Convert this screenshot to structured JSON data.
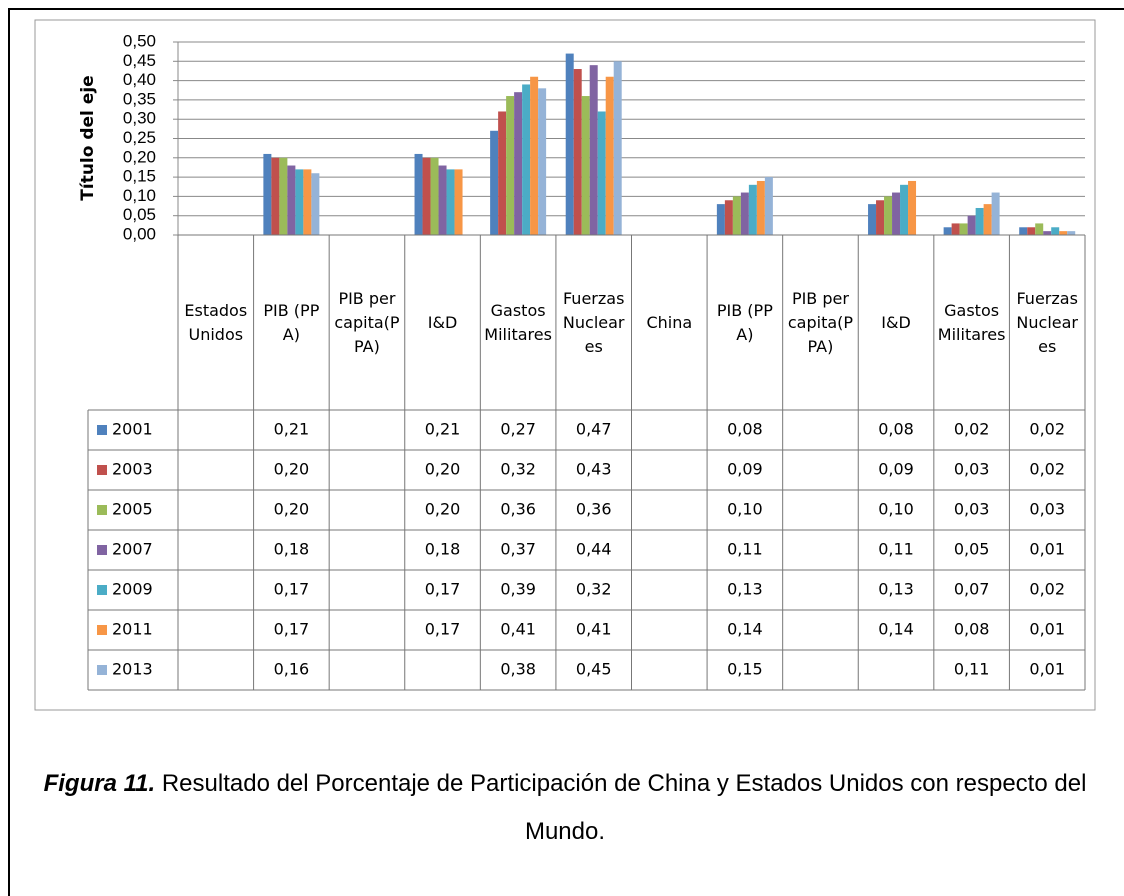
{
  "chart_data": {
    "type": "bar",
    "y_axis_label": "Título del eje",
    "categories": [
      "Estados Unidos",
      "PIB (PPA)",
      "PIB per capita(PPA)",
      "I&D",
      "Gastos Militares",
      "Fuerzas Nucleares",
      "China",
      "PIB (PPA)",
      "PIB per capita(PPA)",
      "I&D",
      "Gastos Militares",
      "Fuerzas Nucleares"
    ],
    "series": [
      {
        "name": "2001",
        "color": "#4f81bd",
        "values": [
          null,
          0.21,
          null,
          0.21,
          0.27,
          0.47,
          null,
          0.08,
          null,
          0.08,
          0.02,
          0.02
        ],
        "value_labels": [
          null,
          "0,21",
          null,
          "0,21",
          "0,27",
          "0,47",
          null,
          "0,08",
          null,
          "0,08",
          "0,02",
          "0,02"
        ]
      },
      {
        "name": "2003",
        "color": "#c0504d",
        "values": [
          null,
          0.2,
          null,
          0.2,
          0.32,
          0.43,
          null,
          0.09,
          null,
          0.09,
          0.03,
          0.02
        ],
        "value_labels": [
          null,
          "0,20",
          null,
          "0,20",
          "0,32",
          "0,43",
          null,
          "0,09",
          null,
          "0,09",
          "0,03",
          "0,02"
        ]
      },
      {
        "name": "2005",
        "color": "#9bbb59",
        "values": [
          null,
          0.2,
          null,
          0.2,
          0.36,
          0.36,
          null,
          0.1,
          null,
          0.1,
          0.03,
          0.03
        ],
        "value_labels": [
          null,
          "0,20",
          null,
          "0,20",
          "0,36",
          "0,36",
          null,
          "0,10",
          null,
          "0,10",
          "0,03",
          "0,03"
        ]
      },
      {
        "name": "2007",
        "color": "#8064a2",
        "values": [
          null,
          0.18,
          null,
          0.18,
          0.37,
          0.44,
          null,
          0.11,
          null,
          0.11,
          0.05,
          0.01
        ],
        "value_labels": [
          null,
          "0,18",
          null,
          "0,18",
          "0,37",
          "0,44",
          null,
          "0,11",
          null,
          "0,11",
          "0,05",
          "0,01"
        ]
      },
      {
        "name": "2009",
        "color": "#4bacc6",
        "values": [
          null,
          0.17,
          null,
          0.17,
          0.39,
          0.32,
          null,
          0.13,
          null,
          0.13,
          0.07,
          0.02
        ],
        "value_labels": [
          null,
          "0,17",
          null,
          "0,17",
          "0,39",
          "0,32",
          null,
          "0,13",
          null,
          "0,13",
          "0,07",
          "0,02"
        ]
      },
      {
        "name": "2011",
        "color": "#f79646",
        "values": [
          null,
          0.17,
          null,
          0.17,
          0.41,
          0.41,
          null,
          0.14,
          null,
          0.14,
          0.08,
          0.01
        ],
        "value_labels": [
          null,
          "0,17",
          null,
          "0,17",
          "0,41",
          "0,41",
          null,
          "0,14",
          null,
          "0,14",
          "0,08",
          "0,01"
        ]
      },
      {
        "name": "2013",
        "color": "#95b3d7",
        "values": [
          null,
          0.16,
          null,
          null,
          0.38,
          0.45,
          null,
          0.15,
          null,
          null,
          0.11,
          0.01
        ],
        "value_labels": [
          null,
          "0,16",
          null,
          null,
          "0,38",
          "0,45",
          null,
          "0,15",
          null,
          null,
          "0,11",
          "0,01"
        ]
      }
    ],
    "ylim": [
      0,
      0.5
    ],
    "yticks": [
      {
        "value": 0,
        "label": "0,00"
      },
      {
        "value": 0.05,
        "label": "0,05"
      },
      {
        "value": 0.1,
        "label": "0,10"
      },
      {
        "value": 0.15,
        "label": "0,15"
      },
      {
        "value": 0.2,
        "label": "0,20"
      },
      {
        "value": 0.25,
        "label": "0,25"
      },
      {
        "value": 0.3,
        "label": "0,30"
      },
      {
        "value": 0.35,
        "label": "0,35"
      },
      {
        "value": 0.4,
        "label": "0,40"
      },
      {
        "value": 0.45,
        "label": "0,45"
      },
      {
        "value": 0.5,
        "label": "0,50"
      }
    ],
    "grid": true
  },
  "caption": {
    "label": "Figura 11.",
    "text": "Resultado del Porcentaje de Participación de China y Estados Unidos con respecto del Mundo."
  }
}
